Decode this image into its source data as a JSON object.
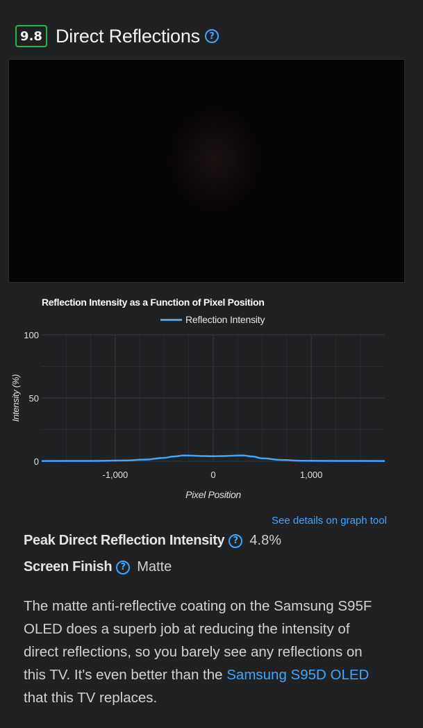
{
  "header": {
    "score": "9.8",
    "title": "Direct Reflections",
    "help_icon": "question-circle-icon"
  },
  "photo": {
    "description_hidden": true
  },
  "chart_data": {
    "type": "line",
    "title": "Reflection Intensity as a Function of Pixel Position",
    "xlabel": "Pixel Position",
    "ylabel": "Intensity (%)",
    "xlim": [
      -1750,
      1750
    ],
    "ylim": [
      0,
      100
    ],
    "xticks": [
      "-1,000",
      "0",
      "1,000"
    ],
    "yticks": [
      "0",
      "50",
      "100"
    ],
    "legend_position": "top",
    "grid": true,
    "series": [
      {
        "name": "Reflection Intensity",
        "color": "#3ea6ff",
        "x": [
          -1750,
          -1200,
          -900,
          -700,
          -500,
          -400,
          -300,
          -200,
          -100,
          0,
          100,
          200,
          300,
          400,
          500,
          700,
          900,
          1200,
          1750
        ],
        "y": [
          0.2,
          0.3,
          0.6,
          1.3,
          2.7,
          3.8,
          4.6,
          4.4,
          4.1,
          4.0,
          4.1,
          4.4,
          4.6,
          3.8,
          2.3,
          1.0,
          0.4,
          0.3,
          0.2
        ]
      }
    ]
  },
  "links": {
    "graph_tool": "See details on graph tool"
  },
  "metrics": [
    {
      "label": "Peak Direct Reflection Intensity",
      "value": "4.8%"
    },
    {
      "label": "Screen Finish",
      "value": "Matte"
    }
  ],
  "description": {
    "text_before": "The matte anti-reflective coating on the Samsung S95F OLED does a superb job at reducing the intensity of direct reflections, so you barely see any reflections on this TV. It's even better than the ",
    "link_text": "Samsung S95D OLED",
    "text_after": " that this TV replaces."
  }
}
